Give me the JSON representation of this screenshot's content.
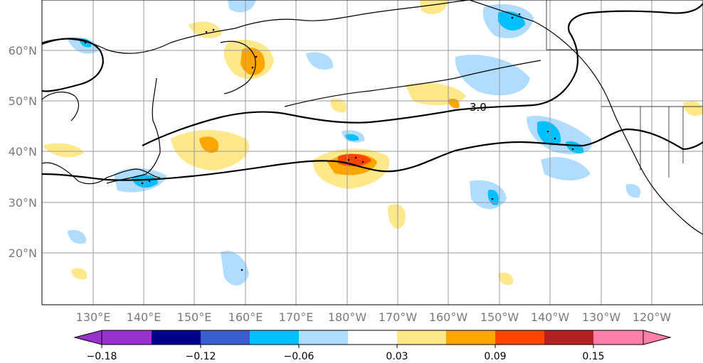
{
  "map": {
    "lat_ticks": [
      "60°N",
      "50°N",
      "40°N",
      "30°N",
      "20°N"
    ],
    "lon_ticks": [
      "130°E",
      "140°E",
      "150°E",
      "160°E",
      "170°E",
      "180°W",
      "170°W",
      "160°W",
      "150°W",
      "140°W",
      "130°W",
      "120°W"
    ],
    "contour_label": "3.0",
    "anomaly_positive_colors": [
      "#ffe88a",
      "#ffa500",
      "#ff4500",
      "#b22222"
    ],
    "anomaly_negative_colors": [
      "#b0dcff",
      "#00bfff"
    ]
  },
  "colorbar": {
    "tick_labels": [
      "−0.18",
      "−0.12",
      "−0.06",
      "0.03",
      "0.09",
      "0.15"
    ],
    "colors": [
      "#9932cc",
      "#00008b",
      "#3a5fcd",
      "#00bfff",
      "#b0dcff",
      "#ffffff",
      "#ffe88a",
      "#ffa500",
      "#ff4500",
      "#b22222",
      "#ff7fa8"
    ]
  }
}
